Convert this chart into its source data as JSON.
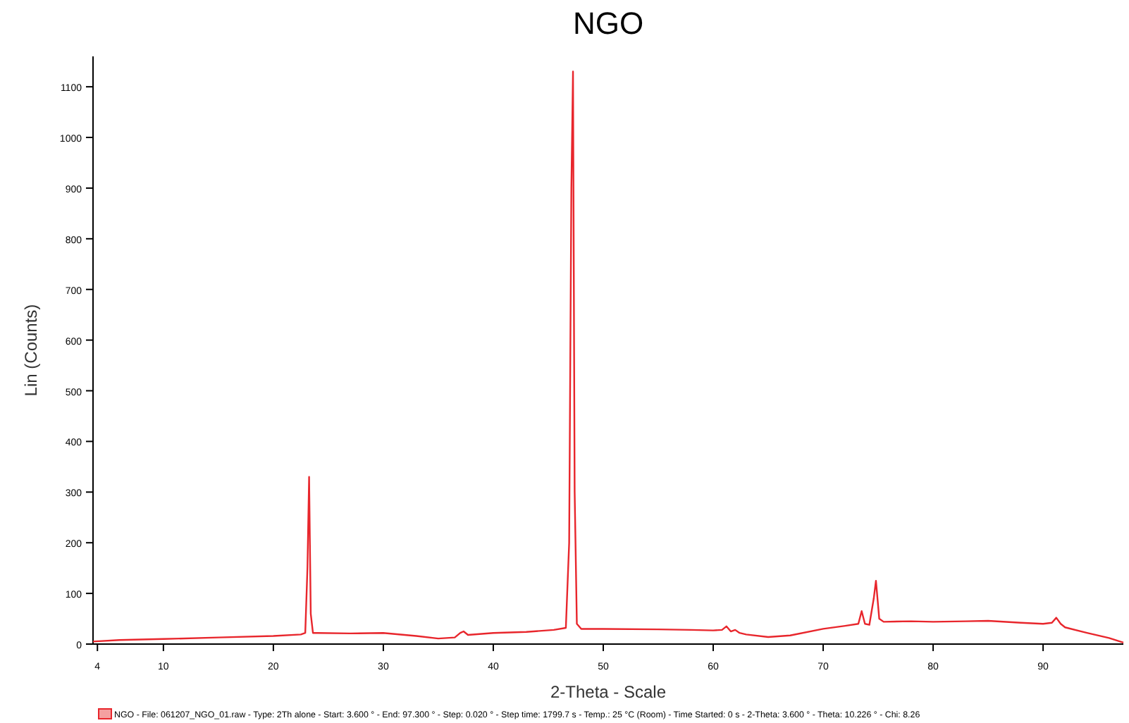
{
  "chart_data": {
    "type": "line",
    "title": "NGO",
    "xlabel": "2-Theta - Scale",
    "ylabel": "Lin (Counts)",
    "annotations": [
      "NGO - File: 061207_NGO_01.raw - Type: 2Th alone - Start: 3.600 ° - End: 97.300 ° - Step: 0.020 ° - Step time: 1799.7 s - Temp.: 25 °C (Room) - Time Started: 0 s - 2-Theta: 3.600 ° - Theta: 10.226 ° - Chi: 8.26"
    ],
    "xlim": [
      3.6,
      97.3
    ],
    "xticks": [
      4,
      10,
      20,
      30,
      40,
      50,
      60,
      70,
      80,
      90
    ],
    "ylim": [
      0,
      1160
    ],
    "yticks": [
      0,
      100,
      200,
      300,
      400,
      500,
      600,
      700,
      800,
      900,
      1000,
      1100
    ],
    "grid": false,
    "line_style": "solid",
    "series": [
      {
        "color": "#e8262c",
        "x": [
          3.6,
          6,
          10,
          15,
          20,
          22.5,
          22.9,
          23.1,
          23.25,
          23.4,
          23.6,
          24,
          27,
          30,
          33,
          35,
          36.5,
          37,
          37.3,
          37.7,
          40,
          43,
          45.5,
          46.6,
          46.9,
          47.1,
          47.25,
          47.4,
          47.6,
          48,
          50,
          55,
          58,
          60,
          60.8,
          61.2,
          61.6,
          62,
          62.4,
          63,
          65,
          67,
          70,
          72,
          73.2,
          73.5,
          73.8,
          74.2,
          74.6,
          74.8,
          75.1,
          75.5,
          78,
          80,
          83,
          85,
          88,
          90,
          90.8,
          91.2,
          91.6,
          92,
          94,
          96,
          97.3
        ],
        "values": [
          5,
          8,
          10,
          13,
          16,
          19,
          22,
          150,
          330,
          60,
          22,
          22,
          21,
          22,
          16,
          11,
          13,
          22,
          25,
          18,
          22,
          24,
          28,
          32,
          200,
          900,
          1130,
          300,
          40,
          30,
          30,
          29,
          28,
          27,
          28,
          35,
          25,
          28,
          22,
          19,
          14,
          17,
          30,
          36,
          40,
          65,
          40,
          38,
          90,
          125,
          50,
          44,
          45,
          44,
          45,
          46,
          42,
          40,
          42,
          52,
          40,
          33,
          22,
          12,
          3
        ]
      }
    ]
  }
}
